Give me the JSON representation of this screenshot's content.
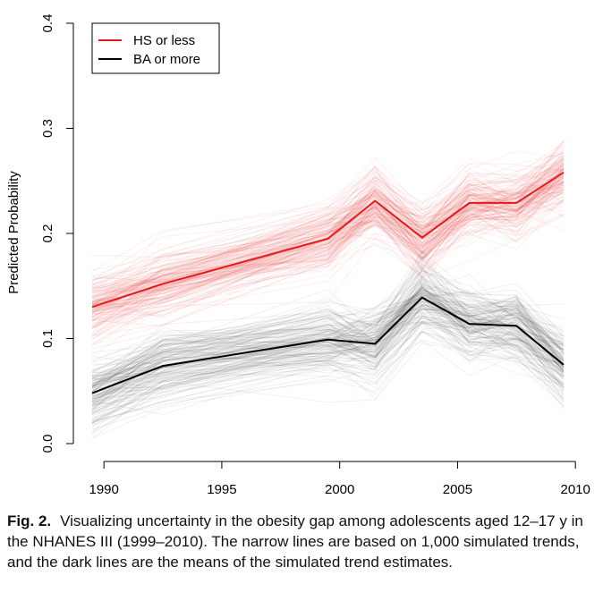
{
  "chart_data": {
    "type": "line",
    "ylabel": "Predicted Probability",
    "xlim": [
      1989.5,
      2009.5
    ],
    "ylim": [
      0,
      0.4
    ],
    "x_ticks": [
      1990,
      1995,
      2000,
      2005,
      2010
    ],
    "y_ticks": [
      0.0,
      0.1,
      0.2,
      0.3,
      0.4
    ],
    "x_tick_labels": [
      "1990",
      "1995",
      "2000",
      "2005",
      "2010"
    ],
    "y_tick_labels": [
      "0.0",
      "0.1",
      "0.2",
      "0.3",
      "0.4"
    ],
    "legend_placement": "top-left",
    "x": [
      1989.5,
      1992.5,
      1999.5,
      2001.5,
      2003.5,
      2005.5,
      2007.5,
      2009.5
    ],
    "series": [
      {
        "name": "HS or less",
        "color": "#e8191b",
        "values": [
          0.13,
          0.152,
          0.195,
          0.231,
          0.196,
          0.229,
          0.229,
          0.258
        ]
      },
      {
        "name": "BA or more",
        "color": "#000000",
        "values": [
          0.048,
          0.074,
          0.099,
          0.095,
          0.139,
          0.114,
          0.112,
          0.075
        ]
      }
    ],
    "simulated_trends_per_series": 1000
  },
  "caption": {
    "label": "Fig. 2.",
    "text": "Visualizing uncertainty in the obesity gap among adolescents aged 12–17 y in the NHANES III (1999–2010). The narrow lines are based on 1,000 simulated trends, and the dark lines are the means of the simulated trend estimates."
  }
}
